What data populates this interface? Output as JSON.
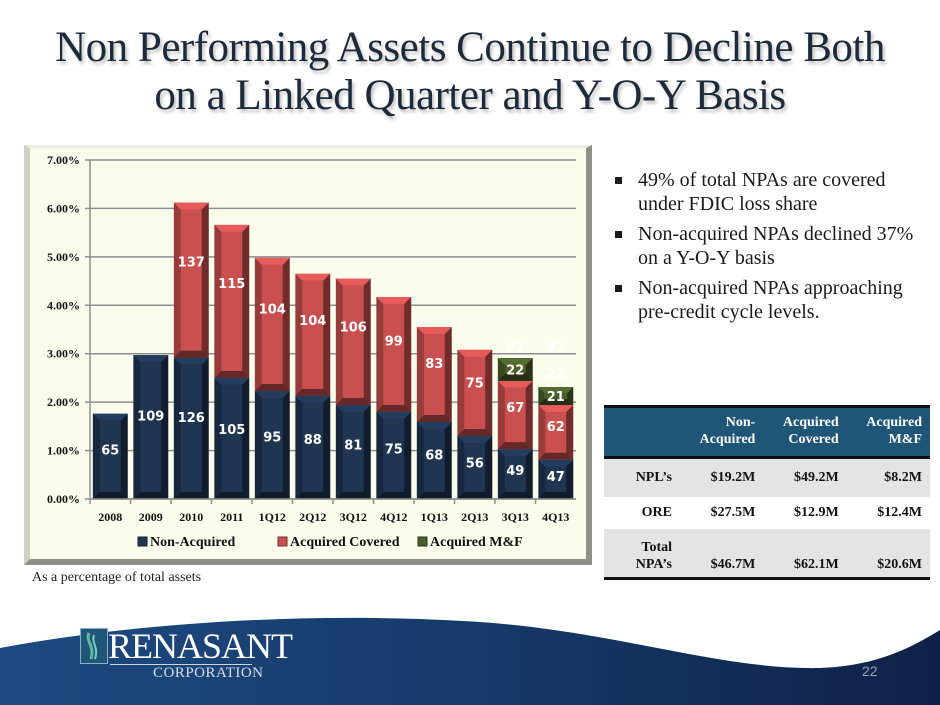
{
  "title": {
    "line1": "Non Performing Assets Continue to Decline Both",
    "line2": "on a Linked Quarter and Y-O-Y Basis"
  },
  "bullets": [
    "49% of total NPAs are covered under FDIC loss share",
    "Non-acquired NPAs  declined 37% on a Y-O-Y basis",
    "Non-acquired NPAs approaching pre-credit cycle levels."
  ],
  "caption": "As a percentage of total assets",
  "table": {
    "headers": [
      "",
      "Non-Acquired",
      "Acquired Covered",
      "Acquired M&F"
    ],
    "header_lines": [
      [
        "",
        ""
      ],
      [
        "Non-",
        "Acquired"
      ],
      [
        "Acquired",
        "Covered"
      ],
      [
        "Acquired",
        "M&F"
      ]
    ],
    "rows": [
      {
        "label": "NPL’s",
        "label_lines": [
          "NPL’s"
        ],
        "values": [
          "$19.2M",
          "$49.2M",
          "$8.2M"
        ]
      },
      {
        "label": "ORE",
        "label_lines": [
          "ORE"
        ],
        "values": [
          "$27.5M",
          "$12.9M",
          "$12.4M"
        ]
      },
      {
        "label": "Total NPA’s",
        "label_lines": [
          "Total",
          "NPA’s"
        ],
        "values": [
          "$46.7M",
          "$62.1M",
          "$20.6M"
        ]
      }
    ]
  },
  "logo": {
    "name": "RENASANT",
    "subtitle": "CORPORATION"
  },
  "page_number": "22",
  "colors": {
    "non_acquired": "#1f3552",
    "acquired_covered": "#c9504f",
    "acquired_mf": "#4a5e2a",
    "title": "#1c2a3c",
    "table_header": "#1f5677",
    "footer": "#163a6a"
  },
  "chart_data": {
    "type": "bar",
    "stacked": true,
    "title": "",
    "xlabel": "",
    "ylabel": "",
    "ylim": [
      0,
      7
    ],
    "y_ticks": [
      "0.00%",
      "1.00%",
      "2.00%",
      "3.00%",
      "4.00%",
      "5.00%",
      "6.00%",
      "7.00%"
    ],
    "y_unit": "% of total assets",
    "grid": true,
    "legend": "bottom",
    "categories": [
      "2008",
      "2009",
      "2010",
      "2011",
      "1Q12",
      "2Q12",
      "3Q12",
      "4Q12",
      "1Q13",
      "2Q13",
      "3Q13",
      "4Q13"
    ],
    "series": [
      {
        "name": "Non-Acquired",
        "values_pct": [
          1.76,
          2.97,
          2.92,
          2.5,
          2.23,
          2.13,
          1.94,
          1.8,
          1.59,
          1.3,
          1.03,
          0.81
        ],
        "labels": [
          "65",
          "109",
          "126",
          "105",
          "95",
          "88",
          "81",
          "75",
          "68",
          "56",
          "49",
          "47"
        ]
      },
      {
        "name": "Acquired Covered",
        "values_pct": [
          0,
          0,
          3.2,
          3.16,
          2.75,
          2.52,
          2.61,
          2.37,
          1.96,
          1.78,
          1.41,
          1.13
        ],
        "labels": [
          "",
          "",
          "137",
          "115",
          "104",
          "104",
          "106",
          "99",
          "83",
          "75",
          "67",
          "62"
        ]
      },
      {
        "name": "Acquired M&F",
        "values_pct": [
          0,
          0,
          0,
          0,
          0,
          0,
          0,
          0,
          0,
          0,
          0.47,
          0.37
        ],
        "labels": [
          "",
          "",
          "",
          "",
          "",
          "",
          "",
          "",
          "",
          "",
          "22",
          "21"
        ]
      }
    ],
    "faint_annotations": [
      {
        "category": "3Q13",
        "text": "83"
      },
      {
        "category": "4Q13",
        "text": "83"
      },
      {
        "category": "4Q13",
        "text": "22"
      }
    ]
  }
}
